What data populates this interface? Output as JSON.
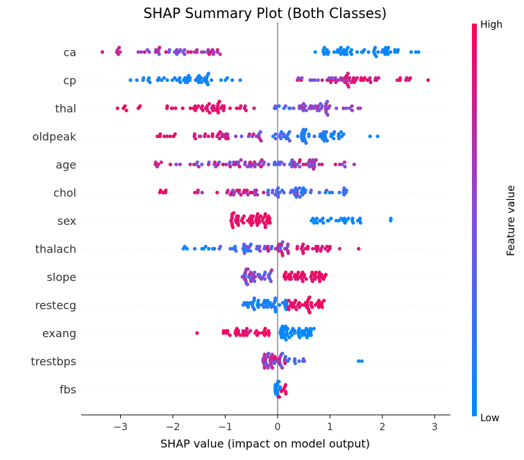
{
  "chart_data": {
    "type": "scatter",
    "title": "SHAP Summary Plot (Both Classes)",
    "xlabel": "SHAP value (impact on model output)",
    "ylabel": "",
    "xlim": [
      -3.75,
      3.3
    ],
    "x_ticks": [
      -3,
      -2,
      -1,
      0,
      1,
      2,
      3
    ],
    "x_tick_labels": [
      "−3",
      "−2",
      "−1",
      "0",
      "1",
      "2",
      "3"
    ],
    "colorbar": {
      "label": "Feature value",
      "high_label": "High",
      "low_label": "Low",
      "low_color": "#008bfb",
      "mid_color": "#7c52e0",
      "high_color": "#ff0052"
    },
    "features": [
      {
        "name": "ca",
        "ranges": [
          {
            "x0": -3.45,
            "x1": -2.85,
            "n": 6,
            "c0": 0.55,
            "c1": 0.9
          },
          {
            "x0": -2.8,
            "x1": -1.55,
            "n": 26,
            "c0": 0.4,
            "c1": 0.95
          },
          {
            "x0": -1.55,
            "x1": -1.05,
            "n": 14,
            "c0": 0.4,
            "c1": 0.95
          },
          {
            "x0": 0.7,
            "x1": 2.7,
            "n": 55,
            "c0": 0.0,
            "c1": 0.08
          }
        ]
      },
      {
        "name": "cp",
        "ranges": [
          {
            "x0": -2.85,
            "x1": -1.9,
            "n": 16,
            "c0": 0.0,
            "c1": 0.12
          },
          {
            "x0": -1.9,
            "x1": -1.2,
            "n": 30,
            "c0": 0.0,
            "c1": 0.1
          },
          {
            "x0": -1.2,
            "x1": -0.7,
            "n": 5,
            "c0": 0.0,
            "c1": 0.1
          },
          {
            "x0": 0.35,
            "x1": 1.3,
            "n": 24,
            "c0": 0.45,
            "c1": 0.95
          },
          {
            "x0": 1.3,
            "x1": 2.0,
            "n": 26,
            "c0": 0.75,
            "c1": 1.0
          },
          {
            "x0": 2.0,
            "x1": 2.95,
            "n": 8,
            "c0": 0.75,
            "c1": 1.0
          }
        ]
      },
      {
        "name": "thal",
        "ranges": [
          {
            "x0": -3.15,
            "x1": -2.5,
            "n": 6,
            "c0": 0.85,
            "c1": 1.0
          },
          {
            "x0": -2.2,
            "x1": -1.55,
            "n": 10,
            "c0": 0.85,
            "c1": 1.0
          },
          {
            "x0": -1.55,
            "x1": -1.0,
            "n": 28,
            "c0": 0.85,
            "c1": 1.0
          },
          {
            "x0": -0.95,
            "x1": -0.4,
            "n": 8,
            "c0": 0.75,
            "c1": 1.0
          },
          {
            "x0": -0.1,
            "x1": 0.3,
            "n": 8,
            "c0": 0.0,
            "c1": 0.55
          },
          {
            "x0": 0.3,
            "x1": 1.0,
            "n": 32,
            "c0": 0.4,
            "c1": 0.7
          },
          {
            "x0": 1.0,
            "x1": 1.6,
            "n": 8,
            "c0": 0.4,
            "c1": 0.7
          }
        ]
      },
      {
        "name": "oldpeak",
        "ranges": [
          {
            "x0": -2.35,
            "x1": -1.95,
            "n": 8,
            "c0": 0.8,
            "c1": 1.0
          },
          {
            "x0": -1.65,
            "x1": -0.9,
            "n": 22,
            "c0": 0.7,
            "c1": 1.0
          },
          {
            "x0": -0.8,
            "x1": -0.3,
            "n": 12,
            "c0": 0.4,
            "c1": 0.85
          },
          {
            "x0": -0.1,
            "x1": 0.45,
            "n": 16,
            "c0": 0.05,
            "c1": 0.5
          },
          {
            "x0": 0.45,
            "x1": 1.3,
            "n": 40,
            "c0": 0.0,
            "c1": 0.25
          },
          {
            "x0": 1.7,
            "x1": 2.15,
            "n": 2,
            "c0": 0.0,
            "c1": 0.05
          }
        ]
      },
      {
        "name": "age",
        "ranges": [
          {
            "x0": -2.45,
            "x1": -1.85,
            "n": 8,
            "c0": 0.45,
            "c1": 0.95
          },
          {
            "x0": -1.7,
            "x1": -0.85,
            "n": 18,
            "c0": 0.3,
            "c1": 0.95
          },
          {
            "x0": -0.85,
            "x1": -0.3,
            "n": 22,
            "c0": 0.45,
            "c1": 0.95
          },
          {
            "x0": -0.3,
            "x1": 0.3,
            "n": 14,
            "c0": 0.1,
            "c1": 0.6
          },
          {
            "x0": 0.3,
            "x1": 0.9,
            "n": 24,
            "c0": 0.3,
            "c1": 0.95
          },
          {
            "x0": 1.0,
            "x1": 1.5,
            "n": 6,
            "c0": 0.45,
            "c1": 0.9
          }
        ]
      },
      {
        "name": "chol",
        "ranges": [
          {
            "x0": -2.3,
            "x1": -2.1,
            "n": 5,
            "c0": 0.85,
            "c1": 1.0
          },
          {
            "x0": -1.6,
            "x1": -0.9,
            "n": 8,
            "c0": 0.6,
            "c1": 1.0
          },
          {
            "x0": -0.9,
            "x1": -0.2,
            "n": 22,
            "c0": 0.5,
            "c1": 1.0
          },
          {
            "x0": -0.3,
            "x1": 0.4,
            "n": 24,
            "c0": 0.1,
            "c1": 0.6
          },
          {
            "x0": 0.4,
            "x1": 1.35,
            "n": 22,
            "c0": 0.0,
            "c1": 0.45
          }
        ]
      },
      {
        "name": "sex",
        "ranges": [
          {
            "x0": -0.9,
            "x1": -0.1,
            "n": 55,
            "c0": 0.88,
            "c1": 1.0
          },
          {
            "x0": 0.55,
            "x1": 1.6,
            "n": 28,
            "c0": 0.0,
            "c1": 0.08
          },
          {
            "x0": 2.1,
            "x1": 2.25,
            "n": 2,
            "c0": 0.0,
            "c1": 0.05
          }
        ]
      },
      {
        "name": "thalach",
        "ranges": [
          {
            "x0": -1.85,
            "x1": -1.2,
            "n": 10,
            "c0": 0.0,
            "c1": 0.1
          },
          {
            "x0": -1.2,
            "x1": -0.4,
            "n": 20,
            "c0": 0.0,
            "c1": 0.6
          },
          {
            "x0": -0.4,
            "x1": 0.2,
            "n": 28,
            "c0": 0.2,
            "c1": 0.95
          },
          {
            "x0": 0.2,
            "x1": 1.2,
            "n": 26,
            "c0": 0.75,
            "c1": 1.0
          },
          {
            "x0": 1.5,
            "x1": 1.55,
            "n": 1,
            "c0": 0.95,
            "c1": 1.0
          }
        ]
      },
      {
        "name": "slope",
        "ranges": [
          {
            "x0": -0.7,
            "x1": -0.1,
            "n": 40,
            "c0": 0.3,
            "c1": 0.75
          },
          {
            "x0": 0.1,
            "x1": 0.95,
            "n": 45,
            "c0": 0.85,
            "c1": 1.0
          }
        ]
      },
      {
        "name": "restecg",
        "ranges": [
          {
            "x0": -0.7,
            "x1": 0.2,
            "n": 45,
            "c0": 0.0,
            "c1": 0.2
          },
          {
            "x0": 0.2,
            "x1": 0.9,
            "n": 40,
            "c0": 0.85,
            "c1": 1.0
          }
        ]
      },
      {
        "name": "exang",
        "ranges": [
          {
            "x0": -1.55,
            "x1": -1.5,
            "n": 1,
            "c0": 0.95,
            "c1": 1.0
          },
          {
            "x0": -1.05,
            "x1": -0.15,
            "n": 35,
            "c0": 0.85,
            "c1": 1.0
          },
          {
            "x0": 0.05,
            "x1": 0.7,
            "n": 45,
            "c0": 0.0,
            "c1": 0.05
          }
        ]
      },
      {
        "name": "trestbps",
        "ranges": [
          {
            "x0": -0.3,
            "x1": 0.15,
            "n": 40,
            "c0": 0.3,
            "c1": 0.95
          },
          {
            "x0": 0.15,
            "x1": 0.6,
            "n": 10,
            "c0": 0.0,
            "c1": 0.4
          },
          {
            "x0": 1.5,
            "x1": 1.65,
            "n": 2,
            "c0": 0.0,
            "c1": 0.05
          }
        ]
      },
      {
        "name": "fbs",
        "ranges": [
          {
            "x0": -0.05,
            "x1": 0.05,
            "n": 18,
            "c0": 0.0,
            "c1": 0.05
          },
          {
            "x0": 0.02,
            "x1": 0.18,
            "n": 8,
            "c0": 0.9,
            "c1": 1.0
          }
        ]
      }
    ]
  }
}
